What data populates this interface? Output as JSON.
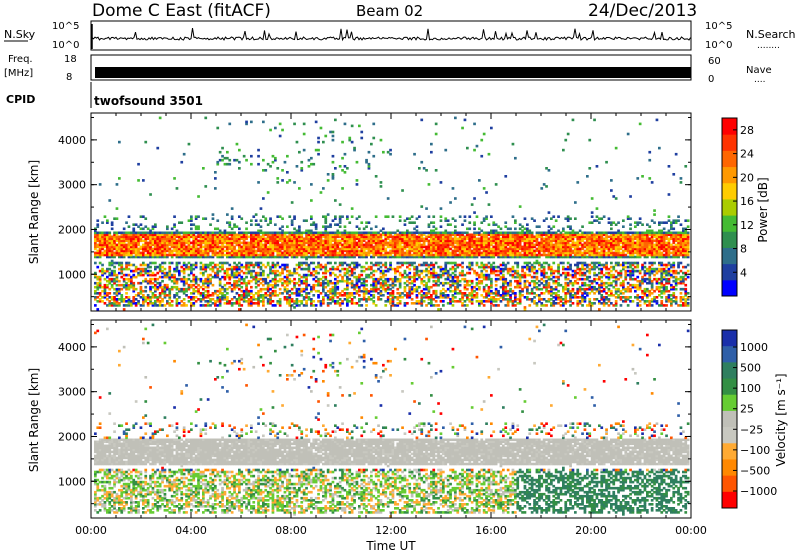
{
  "header": {
    "station": "Dome C East (fitACF)",
    "beam": "Beam 02",
    "date": "24/Dec/2013"
  },
  "status_strip": {
    "nsky_label": "N.Sky",
    "nsky_ticks": [
      "10^5",
      "10^0"
    ],
    "nsearch_label": "N.Search",
    "nsearch_ticks": [
      "10^5",
      "10^0"
    ],
    "freq_label": "Freq.",
    "freq_unit": "[MHz]",
    "freq_ticks": [
      "18",
      "8"
    ],
    "nave_label": "Nave",
    "nave_ticks": [
      "60",
      "0"
    ],
    "cpid_label": "CPID",
    "cpid_value": "twofsound 3501",
    "legend_dots": "........",
    "legend_dots_short": "...."
  },
  "colors": {
    "power_scale": [
      "#0000ff",
      "#1f3fa0",
      "#2e6e8a",
      "#2f8f4f",
      "#44bb33",
      "#aacc00",
      "#ffcc00",
      "#ff9900",
      "#ff6600",
      "#ff3300",
      "#ff0000"
    ],
    "velocity_scale": [
      "#1a2faa",
      "#2f5fa8",
      "#2f7f5f",
      "#338f44",
      "#66cc33",
      "#c0c0b8",
      "#c8c8c0",
      "#ffaa33",
      "#ff8800",
      "#ff5500",
      "#ff0000"
    ]
  },
  "chart_data": [
    {
      "type": "heatmap",
      "name": "power",
      "ylabel": "Slant Range [km]",
      "xlabel": "",
      "ylim": [
        180,
        4600
      ],
      "y_ticks": [
        1000,
        2000,
        3000,
        4000
      ],
      "x_ticks": [
        "00:00",
        "04:00",
        "08:00",
        "12:00",
        "16:00",
        "20:00",
        "00:00"
      ],
      "xlim_hours": [
        0,
        24
      ],
      "colorbar": {
        "label": "Power [dB]",
        "ticks": [
          4,
          8,
          12,
          16,
          20,
          24,
          28
        ],
        "range": [
          0,
          30
        ]
      }
    },
    {
      "type": "heatmap",
      "name": "velocity",
      "ylabel": "Slant Range [km]",
      "xlabel": "Time UT",
      "ylim": [
        180,
        4600
      ],
      "y_ticks": [
        1000,
        2000,
        3000,
        4000
      ],
      "x_ticks": [
        "00:00",
        "04:00",
        "08:00",
        "12:00",
        "16:00",
        "20:00",
        "00:00"
      ],
      "xlim_hours": [
        0,
        24
      ],
      "colorbar": {
        "label": "Velocity [m s⁻¹]",
        "ticks": [
          "1000",
          "500",
          "100",
          "25",
          "−25",
          "−100",
          "−500",
          "−1000"
        ]
      }
    }
  ]
}
